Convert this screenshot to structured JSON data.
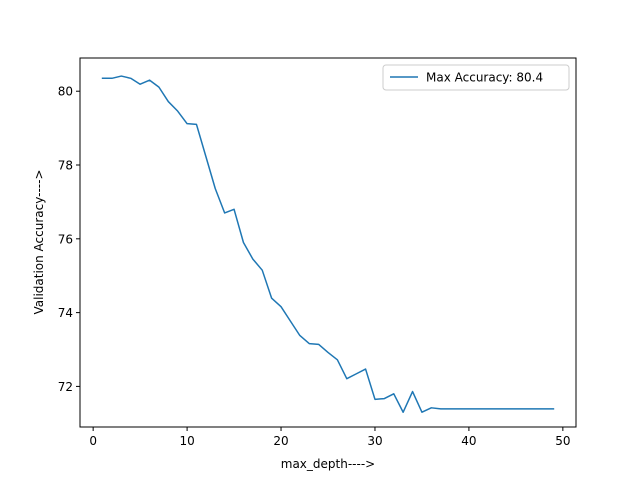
{
  "chart_data": {
    "type": "line",
    "title": "",
    "xlabel": "max_depth---->",
    "ylabel": "Validation Accuracy---->",
    "xlim": [
      -1.4,
      51.4
    ],
    "ylim": [
      70.9,
      80.9
    ],
    "xticks": [
      0,
      10,
      20,
      30,
      40,
      50
    ],
    "yticks": [
      72,
      74,
      76,
      78,
      80
    ],
    "grid": false,
    "legend_position": "top-right",
    "series": [
      {
        "name": "Max Accuracy: 80.4",
        "color": "#1f77b4",
        "x": [
          1,
          2,
          3,
          4,
          5,
          6,
          7,
          8,
          9,
          10,
          11,
          12,
          13,
          14,
          15,
          16,
          17,
          18,
          19,
          20,
          21,
          22,
          23,
          24,
          25,
          26,
          27,
          28,
          29,
          30,
          31,
          32,
          33,
          34,
          35,
          36,
          37,
          38,
          39,
          40,
          41,
          42,
          43,
          44,
          45,
          46,
          47,
          48,
          49
        ],
        "y": [
          80.35,
          80.35,
          80.41,
          80.35,
          80.19,
          80.3,
          80.11,
          79.72,
          79.46,
          79.12,
          79.1,
          78.23,
          77.36,
          76.7,
          76.8,
          75.9,
          75.45,
          75.15,
          74.39,
          74.16,
          73.77,
          73.38,
          73.16,
          73.14,
          72.92,
          72.72,
          72.21,
          72.34,
          72.47,
          71.65,
          71.67,
          71.8,
          71.3,
          71.86,
          71.3,
          71.42,
          71.39,
          71.39,
          71.39,
          71.39,
          71.39,
          71.39,
          71.39,
          71.39,
          71.39,
          71.39,
          71.39,
          71.39,
          71.39
        ]
      }
    ]
  }
}
